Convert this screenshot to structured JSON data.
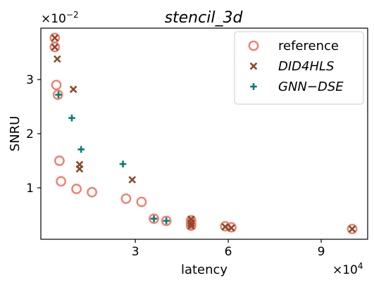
{
  "chart_data": {
    "type": "scatter",
    "title": "stencil_3d",
    "xlabel": "latency",
    "ylabel": "SNRU",
    "x_multiplier": "×10",
    "x_exponent": "4",
    "y_multiplier": "×10",
    "y_exponent": "−2",
    "xlim": [
      -500,
      105000
    ],
    "ylim": [
      0.05,
      3.95
    ],
    "xticks": [
      30000,
      60000,
      90000
    ],
    "xtick_labels": [
      "3",
      "6",
      "9"
    ],
    "yticks": [
      1,
      2,
      3
    ],
    "ytick_labels": [
      "1",
      "2",
      "3"
    ],
    "grid": false,
    "legend_position": "top-right",
    "series": [
      {
        "name": "reference",
        "marker": "circle",
        "color": "#f08070",
        "points": [
          [
            4000,
            3.77
          ],
          [
            4000,
            3.6
          ],
          [
            4500,
            2.9
          ],
          [
            5000,
            2.72
          ],
          [
            5500,
            1.5
          ],
          [
            6000,
            1.12
          ],
          [
            11000,
            0.98
          ],
          [
            16000,
            0.92
          ],
          [
            27000,
            0.8
          ],
          [
            32000,
            0.74
          ],
          [
            36000,
            0.43
          ],
          [
            40000,
            0.39
          ],
          [
            48000,
            0.4
          ],
          [
            48000,
            0.36
          ],
          [
            48000,
            0.33
          ],
          [
            48000,
            0.3
          ],
          [
            59000,
            0.29
          ],
          [
            61000,
            0.27
          ],
          [
            100000,
            0.24
          ]
        ]
      },
      {
        "name": "DID4HLS",
        "marker": "x",
        "color": "#8b4a2b",
        "points": [
          [
            4000,
            3.77
          ],
          [
            4000,
            3.6
          ],
          [
            4800,
            3.38
          ],
          [
            10000,
            2.82
          ],
          [
            12000,
            1.43
          ],
          [
            12000,
            1.35
          ],
          [
            29000,
            1.15
          ],
          [
            48000,
            0.42
          ],
          [
            48000,
            0.35
          ],
          [
            48000,
            0.3
          ],
          [
            59000,
            0.28
          ],
          [
            61000,
            0.26
          ],
          [
            100000,
            0.24
          ]
        ]
      },
      {
        "name": "GNN−DSE",
        "marker": "plus",
        "color": "#0a7a78",
        "points": [
          [
            5200,
            2.72
          ],
          [
            9500,
            2.29
          ],
          [
            12500,
            1.71
          ],
          [
            26000,
            1.44
          ],
          [
            36000,
            0.43
          ],
          [
            40000,
            0.39
          ]
        ]
      }
    ]
  }
}
